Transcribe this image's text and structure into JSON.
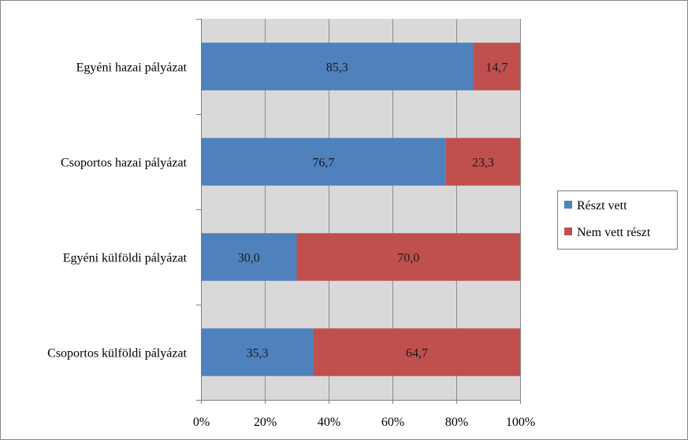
{
  "chart_data": {
    "type": "bar",
    "orientation": "horizontal",
    "stacked": "percent",
    "categories": [
      "Egyéni hazai pályázat",
      "Csoportos hazai pályázat",
      "Egyéni külföldi pályázat",
      "Csoportos külföldi pályázat"
    ],
    "series": [
      {
        "name": "Részt vett",
        "color": "#4F81BD",
        "values": [
          85.3,
          76.7,
          30.0,
          35.3
        ],
        "labels": [
          "85,3",
          "76,7",
          "30,0",
          "35,3"
        ]
      },
      {
        "name": "Nem vett részt",
        "color": "#C0504D",
        "values": [
          14.7,
          23.3,
          70.0,
          64.7
        ],
        "labels": [
          "14,7",
          "23,3",
          "70,0",
          "64,7"
        ]
      }
    ],
    "xlim": [
      0,
      100
    ],
    "xticks": [
      "0%",
      "20%",
      "40%",
      "60%",
      "80%",
      "100%"
    ],
    "grid": true,
    "plot_background": "#D9D9D9",
    "legend": "right"
  }
}
